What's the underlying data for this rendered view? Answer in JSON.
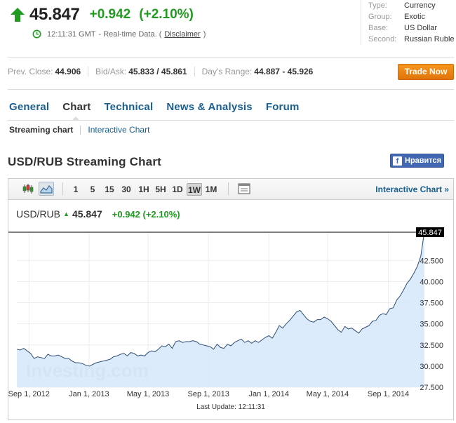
{
  "quote": {
    "last": "45.847",
    "change": "+0.942",
    "change_pct": "(+2.10%)",
    "time": "12:11:31 GMT",
    "realtime_label": "- Real-time Data. (",
    "disclaimer": "Disclaimer",
    "close_paren": ")",
    "up_color": "#1f9b1f"
  },
  "info": [
    {
      "k": "Type:",
      "v": "Currency"
    },
    {
      "k": "Group:",
      "v": "Exotic"
    },
    {
      "k": "Base:",
      "v": "US Dollar"
    },
    {
      "k": "Second:",
      "v": "Russian Ruble"
    }
  ],
  "stats": {
    "prev_close_label": "Prev. Close:",
    "prev_close": "44.906",
    "bidask_label": "Bid/Ask:",
    "bidask": "45.833 / 45.861",
    "range_label": "Day's Range:",
    "range": "44.887 - 45.926"
  },
  "trade_button": "Trade Now",
  "tabs": [
    "General",
    "Chart",
    "Technical",
    "News & Analysis",
    "Forum"
  ],
  "active_tab": "Chart",
  "subtabs": [
    "Streaming chart",
    "Interactive Chart"
  ],
  "section_title": "USD/RUB Streaming Chart",
  "fb_button": "Нравится",
  "toolbar": {
    "periods": [
      "1",
      "5",
      "15",
      "30",
      "1H",
      "5H",
      "1D",
      "1W",
      "1M"
    ],
    "selected_period": "1W",
    "interactive_link": "Interactive Chart »"
  },
  "legend": {
    "symbol": "USD/RUB",
    "price": "45.847",
    "change": "+0.942 (+2.10%)"
  },
  "watermark": "Investing.com",
  "last_update": "Last Update: 12:11:31",
  "chart_data": {
    "type": "area",
    "last_value_label": "45.847",
    "x_ticks": [
      "Sep 1, 2012",
      "Jan 1, 2013",
      "May 1, 2013",
      "Sep 1, 2013",
      "Jan 1, 2014",
      "May 1, 2014",
      "Sep 1, 2014"
    ],
    "y_ticks": [
      "27.500",
      "30.000",
      "32.500",
      "35.000",
      "37.500",
      "40.000",
      "42.500"
    ],
    "ylim": [
      27.5,
      45.847
    ],
    "x_range_weeks": [
      0,
      115
    ],
    "x_tick_week_positions": [
      3.5,
      20.9,
      38.0,
      55.5,
      73.0,
      90.0,
      107.6
    ],
    "values": [
      32.0,
      31.9,
      32.1,
      31.8,
      31.5,
      30.9,
      31.1,
      31.0,
      30.9,
      31.4,
      31.2,
      31.2,
      31.3,
      31.1,
      30.9,
      30.9,
      30.6,
      30.4,
      30.4,
      30.3,
      30.1,
      30.0,
      30.2,
      30.4,
      30.5,
      30.6,
      30.7,
      30.8,
      31.1,
      31.2,
      31.4,
      31.5,
      31.2,
      31.6,
      31.5,
      31.2,
      31.3,
      31.2,
      31.6,
      31.8,
      31.7,
      32.0,
      32.4,
      32.3,
      32.6,
      32.1,
      32.9,
      33.0,
      32.8,
      32.9,
      32.9,
      33.0,
      32.9,
      32.6,
      32.5,
      32.4,
      32.3,
      32.0,
      32.6,
      32.2,
      32.1,
      32.6,
      32.4,
      32.8,
      33.0,
      33.2,
      32.8,
      33.0,
      32.7,
      33.0,
      32.8,
      33.1,
      33.4,
      33.6,
      33.3,
      34.0,
      34.8,
      34.5,
      35.0,
      35.4,
      35.9,
      36.4,
      36.6,
      36.1,
      35.6,
      35.3,
      35.2,
      35.5,
      35.5,
      35.8,
      35.6,
      35.3,
      34.8,
      34.3,
      34.0,
      34.7,
      34.4,
      34.5,
      34.2,
      33.9,
      34.4,
      34.6,
      34.8,
      35.3,
      35.4,
      36.0,
      36.2,
      36.1,
      36.8,
      36.9,
      37.8,
      38.3,
      39.0,
      39.8,
      40.3,
      41.0,
      41.8,
      43.0,
      45.847
    ]
  }
}
